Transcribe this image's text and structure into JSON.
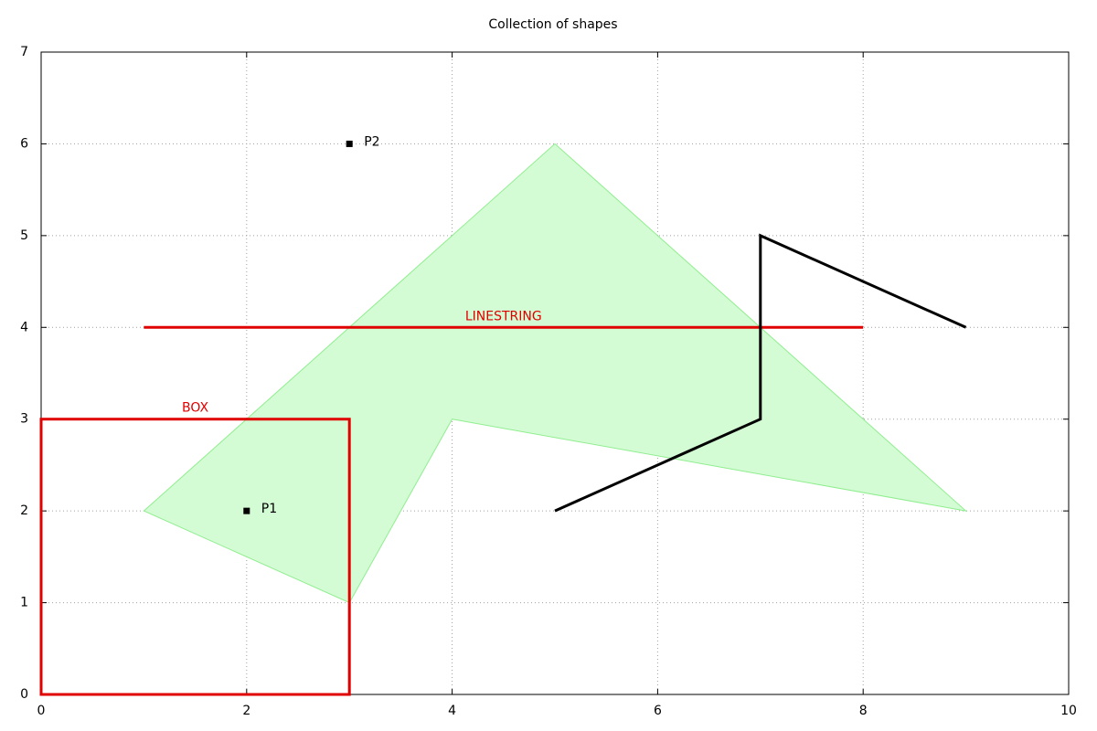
{
  "chart_data": {
    "type": "shapes",
    "title": "Collection of shapes",
    "xlim": [
      0,
      10
    ],
    "ylim": [
      0,
      7
    ],
    "xticks": [
      0,
      2,
      4,
      6,
      8,
      10
    ],
    "yticks": [
      0,
      1,
      2,
      3,
      4,
      5,
      6,
      7
    ],
    "grid": true,
    "shapes": [
      {
        "kind": "polygon",
        "color": "#d4fcd4",
        "edge_color": "#90ee90",
        "x": [
          1,
          5,
          9,
          4,
          3
        ],
        "y": [
          2,
          6,
          2,
          3,
          1
        ]
      },
      {
        "kind": "line",
        "name": "LINESTRING",
        "color": "#e00000",
        "x": [
          1,
          8
        ],
        "y": [
          4,
          4
        ]
      },
      {
        "kind": "box",
        "name": "BOX",
        "color": "#e00000",
        "x": [
          0,
          3
        ],
        "y": [
          0,
          3
        ]
      },
      {
        "kind": "line",
        "color": "#000000",
        "x": [
          5,
          7,
          7,
          9
        ],
        "y": [
          2,
          3,
          5,
          4
        ]
      },
      {
        "kind": "point",
        "name": "P1",
        "color": "#000000",
        "x": [
          2
        ],
        "y": [
          2
        ]
      },
      {
        "kind": "point",
        "name": "P2",
        "color": "#000000",
        "x": [
          3
        ],
        "y": [
          6
        ]
      }
    ]
  }
}
